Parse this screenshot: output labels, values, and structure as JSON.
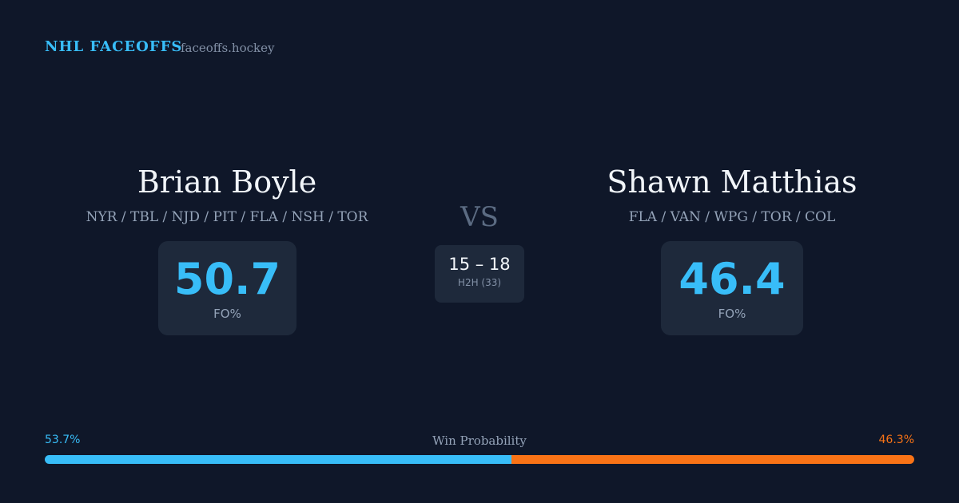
{
  "header": {
    "brand": "NHL FACEOFFS",
    "site": "faceoffs.hockey"
  },
  "players": [
    {
      "name": "Brian Boyle",
      "teams": "NYR / TBL / NJD / PIT / FLA / NSH / TOR",
      "fo_pct": 50.7,
      "fo_label": "FO%"
    },
    {
      "name": "Shawn Matthias",
      "teams": "FLA / VAN / WPG / TOR / COL",
      "fo_pct": 46.4,
      "fo_label": "FO%"
    }
  ],
  "vs": "VS",
  "h2h": {
    "score": "15 – 18",
    "label": "H2H (33)"
  },
  "win_probability": {
    "label": "Win Probability",
    "segments": [
      {
        "value": 53.7,
        "label": "53.7%",
        "color": "#38bdf8"
      },
      {
        "value": 46.3,
        "label": "46.3%",
        "color": "#f97316"
      }
    ]
  }
}
